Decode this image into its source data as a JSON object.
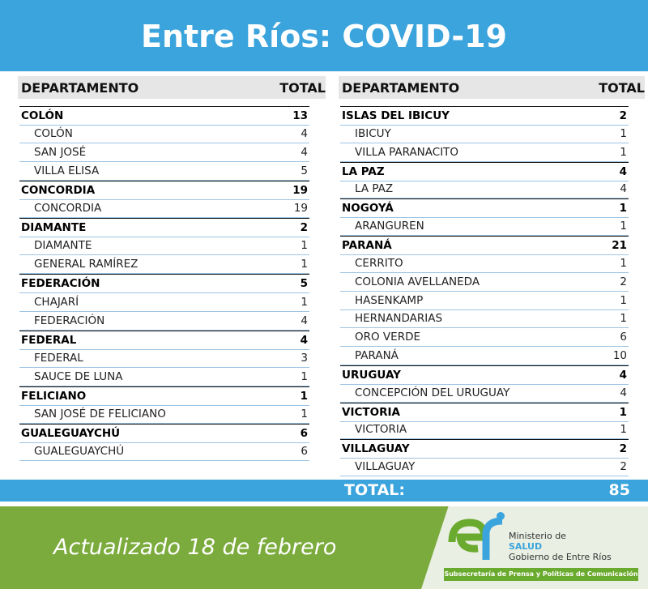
{
  "header": {
    "title": "Entre Ríos: COVID-19"
  },
  "columns": [
    "DEPARTAMENTO",
    "TOTAL"
  ],
  "tables": [
    {
      "groups": [
        {
          "name": "COLÓN",
          "total": 13,
          "items": [
            {
              "name": "COLÓN",
              "total": 4
            },
            {
              "name": "SAN JOSÉ",
              "total": 4
            },
            {
              "name": "VILLA ELISA",
              "total": 5
            }
          ]
        },
        {
          "name": "CONCORDIA",
          "total": 19,
          "items": [
            {
              "name": "CONCORDIA",
              "total": 19
            }
          ]
        },
        {
          "name": "DIAMANTE",
          "total": 2,
          "items": [
            {
              "name": "DIAMANTE",
              "total": 1
            },
            {
              "name": "GENERAL RAMÍREZ",
              "total": 1
            }
          ]
        },
        {
          "name": "FEDERACIÓN",
          "total": 5,
          "items": [
            {
              "name": "CHAJARÍ",
              "total": 1
            },
            {
              "name": "FEDERACIÓN",
              "total": 4
            }
          ]
        },
        {
          "name": "FEDERAL",
          "total": 4,
          "items": [
            {
              "name": "FEDERAL",
              "total": 3
            },
            {
              "name": "SAUCE DE LUNA",
              "total": 1
            }
          ]
        },
        {
          "name": "FELICIANO",
          "total": 1,
          "items": [
            {
              "name": "SAN JOSÉ DE FELICIANO",
              "total": 1
            }
          ]
        },
        {
          "name": "GUALEGUAYCHÚ",
          "total": 6,
          "items": [
            {
              "name": "GUALEGUAYCHÚ",
              "total": 6
            }
          ]
        }
      ]
    },
    {
      "groups": [
        {
          "name": "ISLAS DEL IBICUY",
          "total": 2,
          "items": [
            {
              "name": "IBICUY",
              "total": 1
            },
            {
              "name": "VILLA PARANACITO",
              "total": 1
            }
          ]
        },
        {
          "name": "LA PAZ",
          "total": 4,
          "items": [
            {
              "name": "LA PAZ",
              "total": 4
            }
          ]
        },
        {
          "name": "NOGOYÁ",
          "total": 1,
          "items": [
            {
              "name": "ARANGUREN",
              "total": 1
            }
          ]
        },
        {
          "name": "PARANÁ",
          "total": 21,
          "items": [
            {
              "name": "CERRITO",
              "total": 1
            },
            {
              "name": "COLONIA AVELLANEDA",
              "total": 2
            },
            {
              "name": "HASENKAMP",
              "total": 1
            },
            {
              "name": "HERNANDARIAS",
              "total": 1
            },
            {
              "name": "ORO VERDE",
              "total": 6
            },
            {
              "name": "PARANÁ",
              "total": 10
            }
          ]
        },
        {
          "name": "URUGUAY",
          "total": 4,
          "items": [
            {
              "name": "CONCEPCIÓN DEL URUGUAY",
              "total": 4
            }
          ]
        },
        {
          "name": "VICTORIA",
          "total": 1,
          "items": [
            {
              "name": "VICTORIA",
              "total": 1
            }
          ]
        },
        {
          "name": "VILLAGUAY",
          "total": 2,
          "items": [
            {
              "name": "VILLAGUAY",
              "total": 2
            }
          ]
        }
      ]
    }
  ],
  "total": {
    "label": "TOTAL:",
    "value": 85
  },
  "footer": {
    "updated": "Actualizado 18 de febrero",
    "logo": {
      "line1": "Ministerio de",
      "line2": "SALUD",
      "line3": "Gobierno de Entre Ríos",
      "band": "Subsecretaría de Prensa y Políticas de Comunicación"
    }
  }
}
